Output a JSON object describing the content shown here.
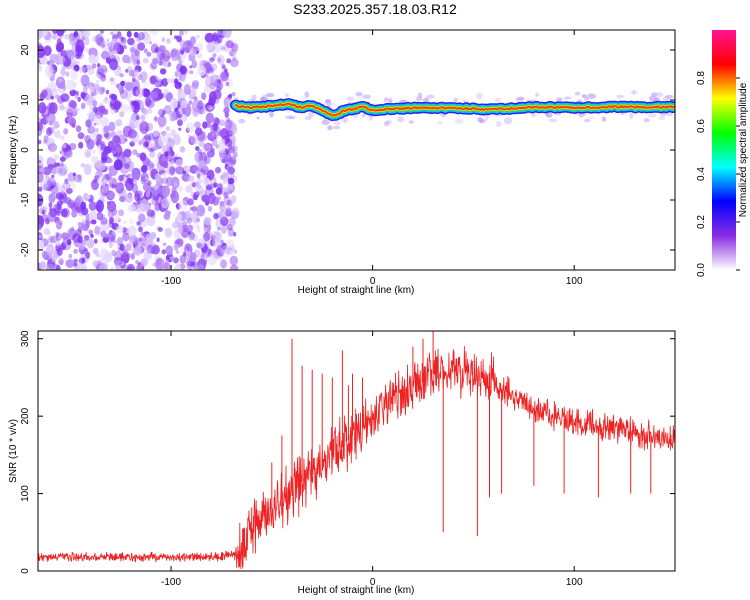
{
  "title": "S233.2025.357.18.03.R12",
  "chart_data": [
    {
      "type": "heatmap",
      "title": "S233.2025.357.18.03.R12",
      "xlabel": "Height of straight line (km)",
      "ylabel": "Frequency (Hz)",
      "xlim": [
        -166,
        150
      ],
      "ylim": [
        -24,
        24
      ],
      "x_ticks": [
        -100,
        0,
        100
      ],
      "y_ticks": [
        -20,
        -10,
        0,
        10,
        20
      ],
      "noise_region_x": [
        -166,
        -68
      ],
      "ridge": {
        "x": [
          -68,
          -60,
          -50,
          -42,
          -35,
          -30,
          -25,
          -20,
          -18,
          -15,
          -10,
          -5,
          0,
          10,
          20,
          40,
          60,
          80,
          100,
          120,
          150
        ],
        "y": [
          8.8,
          8.5,
          8.8,
          9.2,
          8.5,
          9.0,
          7.8,
          7.0,
          6.8,
          7.8,
          8.2,
          8.6,
          8.0,
          8.2,
          8.4,
          8.4,
          8.1,
          8.6,
          8.5,
          8.6,
          8.6
        ]
      },
      "colorbar": {
        "label": "Normalized spectral amplitude",
        "range": [
          0,
          1
        ],
        "ticks": [
          "0.0",
          "0.2",
          "0.4",
          "0.6",
          "0.8"
        ],
        "colors": [
          "#ffffff",
          "#8a2be2",
          "#0000ff",
          "#00ffff",
          "#00ff00",
          "#ffff00",
          "#ff0000",
          "#ff1493"
        ]
      }
    },
    {
      "type": "line",
      "xlabel": "Height of straight line (km)",
      "ylabel": "SNR (10 * v/v)",
      "xlim": [
        -166,
        150
      ],
      "ylim": [
        0,
        310
      ],
      "x_ticks": [
        -100,
        0,
        100
      ],
      "y_ticks": [
        0,
        100,
        200,
        300
      ],
      "color": "#ee2222",
      "envelope": {
        "x": [
          -166,
          -120,
          -80,
          -68,
          -65,
          -60,
          -55,
          -50,
          -45,
          -40,
          -35,
          -30,
          -25,
          -20,
          -15,
          -10,
          -5,
          0,
          5,
          10,
          15,
          20,
          25,
          30,
          35,
          40,
          45,
          50,
          55,
          60,
          70,
          80,
          90,
          100,
          110,
          120,
          130,
          140,
          150
        ],
        "y": [
          18,
          18,
          18,
          20,
          28,
          55,
          70,
          80,
          90,
          105,
          115,
          125,
          140,
          150,
          160,
          175,
          185,
          195,
          205,
          220,
          230,
          240,
          250,
          255,
          258,
          258,
          260,
          255,
          250,
          242,
          225,
          210,
          200,
          193,
          188,
          183,
          178,
          173,
          170
        ]
      },
      "spikes": [
        {
          "x": -60,
          "y": 82
        },
        {
          "x": -50,
          "y": 140
        },
        {
          "x": -45,
          "y": 175
        },
        {
          "x": -40,
          "y": 300
        },
        {
          "x": -35,
          "y": 265
        },
        {
          "x": -30,
          "y": 260
        },
        {
          "x": -25,
          "y": 255
        },
        {
          "x": -20,
          "y": 250
        },
        {
          "x": -15,
          "y": 285
        },
        {
          "x": -12,
          "y": 240
        },
        {
          "x": -10,
          "y": 255
        },
        {
          "x": -5,
          "y": 250
        },
        {
          "x": 20,
          "y": 290
        },
        {
          "x": 25,
          "y": 300
        },
        {
          "x": 30,
          "y": 310
        }
      ],
      "dips": [
        {
          "x": 35,
          "y": 50
        },
        {
          "x": 52,
          "y": 45
        },
        {
          "x": 58,
          "y": 95
        },
        {
          "x": 64,
          "y": 100
        },
        {
          "x": 80,
          "y": 110
        },
        {
          "x": 95,
          "y": 100
        },
        {
          "x": 112,
          "y": 95
        },
        {
          "x": 128,
          "y": 100
        },
        {
          "x": 138,
          "y": 100
        }
      ]
    }
  ]
}
